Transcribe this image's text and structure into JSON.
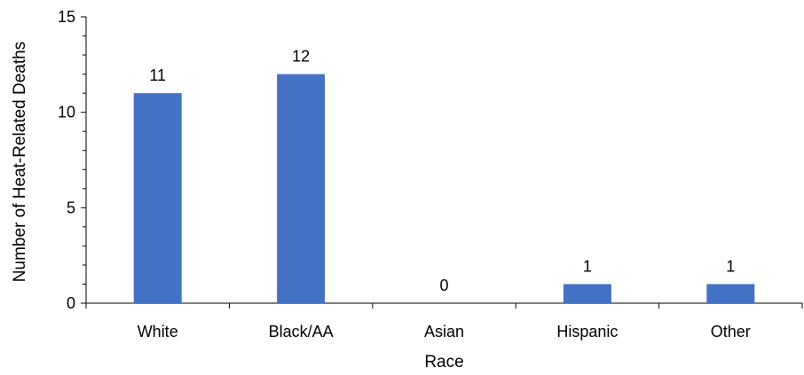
{
  "chart_data": {
    "type": "bar",
    "title": "",
    "xlabel": "Race",
    "ylabel": "Number of Heat-Related Deaths",
    "categories": [
      "White",
      "Black/AA",
      "Asian",
      "Hispanic",
      "Other"
    ],
    "values": [
      11,
      12,
      0,
      1,
      1
    ],
    "data_labels": [
      "11",
      "12",
      "0",
      "1",
      "1"
    ],
    "ylim": [
      0,
      15
    ],
    "yticks": [
      0,
      5,
      10,
      15
    ],
    "ytick_labels": [
      "0",
      "5",
      "10",
      "15"
    ],
    "grid": false,
    "legend": "none",
    "bar_color": "#4472C4"
  }
}
